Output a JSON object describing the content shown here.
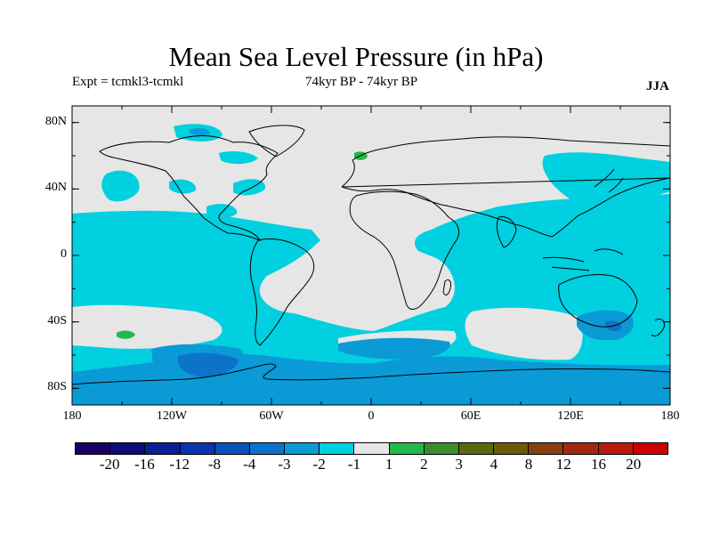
{
  "header": {
    "title": "Mean Sea Level Pressure (in hPa)",
    "experiment": "Expt = tcmkl3-tcmkl",
    "period": "74kyr BP - 74kyr BP",
    "season": "JJA"
  },
  "map": {
    "projection": "cylindrical equidistant",
    "lon_range": [
      -180,
      180
    ],
    "lat_range": [
      -90,
      90
    ],
    "lat_ticks": [
      {
        "lat": 80,
        "label": "80N"
      },
      {
        "lat": 40,
        "label": "40N"
      },
      {
        "lat": 0,
        "label": "0"
      },
      {
        "lat": -40,
        "label": "40S"
      },
      {
        "lat": -80,
        "label": "80S"
      }
    ],
    "lon_ticks": [
      {
        "lon": -180,
        "label": "180"
      },
      {
        "lon": -120,
        "label": "120W"
      },
      {
        "lon": -60,
        "label": "60W"
      },
      {
        "lon": 0,
        "label": "0"
      },
      {
        "lon": 60,
        "label": "60E"
      },
      {
        "lon": 120,
        "label": "120E"
      },
      {
        "lon": 180,
        "label": "180"
      }
    ],
    "background_color": "#e6e6e6",
    "coastline_color": "#000000"
  },
  "colorbar": {
    "colors": [
      "#1a0066",
      "#0c0c7a",
      "#0a1f96",
      "#0a35ad",
      "#0a52bb",
      "#0c74c8",
      "#0a9ad6",
      "#00d0e0",
      "#e6e6e6",
      "#22b84a",
      "#3c8c2a",
      "#5a6a10",
      "#6e5a06",
      "#884010",
      "#a02a10",
      "#b81a0c",
      "#cc0000"
    ],
    "labels": [
      "-20",
      "-16",
      "-12",
      "-8",
      "-4",
      "-3",
      "-2",
      "-1",
      "1",
      "2",
      "3",
      "4",
      "8",
      "12",
      "16",
      "20"
    ]
  }
}
